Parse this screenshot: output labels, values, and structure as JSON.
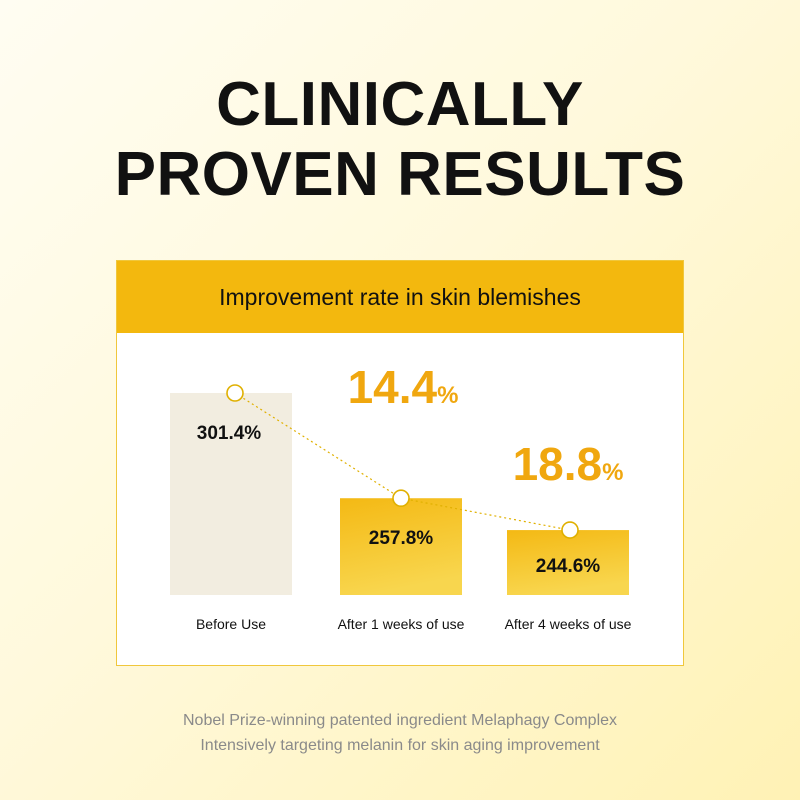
{
  "headline": {
    "line1": "CLINICALLY",
    "line2": "PROVEN RESULTS"
  },
  "chart_data": {
    "type": "bar",
    "title": "Improvement rate in skin blemishes",
    "categories": [
      "Before Use",
      "After 1 weeks of use",
      "After 4 weeks of use"
    ],
    "values": [
      301.4,
      257.8,
      244.6
    ],
    "value_labels": [
      "301.4%",
      "257.8%",
      "244.6%"
    ],
    "improvements": [
      {
        "value": "14.4",
        "unit": "%"
      },
      {
        "value": "18.8",
        "unit": "%"
      }
    ],
    "trend_line": true,
    "colors": {
      "before": "#f2ede0",
      "after_top": "#f4b914",
      "after_bottom": "#f8d24a",
      "accent": "#f0a70f",
      "marker": "#e0b000"
    }
  },
  "footer": {
    "line1": "Nobel Prize-winning patented ingredient Melaphagy Complex",
    "line2": "Intensively targeting melanin for skin aging improvement"
  }
}
